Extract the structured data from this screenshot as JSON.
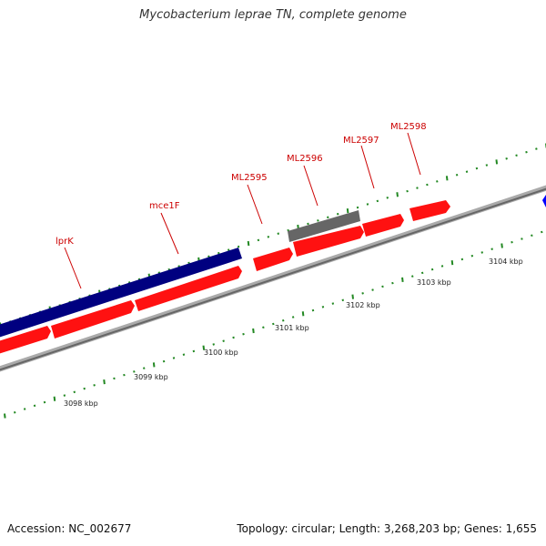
{
  "title": "Mycobacterium leprae TN, complete genome",
  "footer": {
    "accession": "Accession: NC_002677",
    "summary": "Topology: circular; Length: 3,268,203 bp; Genes: 1,655"
  },
  "colors": {
    "forward_feature": "#ff0000",
    "reverse_feature": "#000080",
    "other_feature": "#666666",
    "backbone": "#888888",
    "ticks": "#228822",
    "gene_label": "#cc0000"
  },
  "scale_labels": [
    "3098 kbp",
    "3099 kbp",
    "3100 kbp",
    "3101 kbp",
    "3102 kbp",
    "3103 kbp",
    "3104 kbp"
  ],
  "gene_labels": [
    "lprK",
    "mce1F",
    "ML2595",
    "ML2596",
    "ML2597",
    "ML2598"
  ]
}
